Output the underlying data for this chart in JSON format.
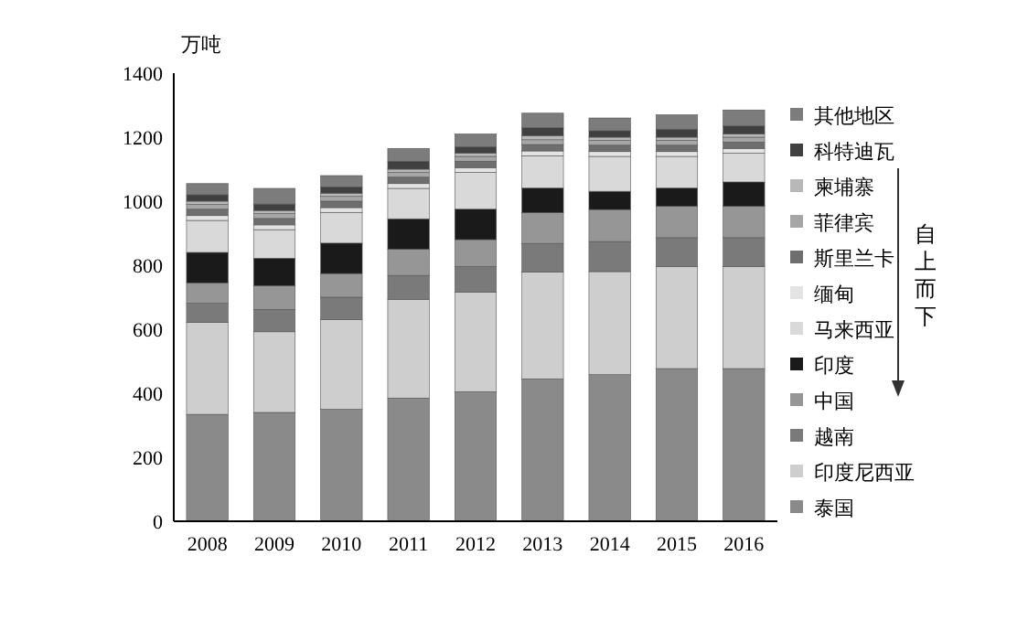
{
  "chart_data": {
    "type": "bar",
    "stacked": true,
    "ylabel": "万吨",
    "categories": [
      "2008",
      "2009",
      "2010",
      "2011",
      "2012",
      "2013",
      "2014",
      "2015",
      "2016"
    ],
    "ylim": [
      0,
      1400
    ],
    "yticks": [
      0,
      200,
      400,
      600,
      800,
      1000,
      1200,
      1400
    ],
    "grid": false,
    "legend": "right",
    "annotations": [
      "自上而下"
    ],
    "series": [
      {
        "name": "泰国",
        "color": "#8a8a8a",
        "values": [
          334,
          340,
          350,
          385,
          405,
          445,
          458,
          477,
          477
        ]
      },
      {
        "name": "印度尼西亚",
        "color": "#cecece",
        "values": [
          287,
          252,
          280,
          308,
          311,
          333,
          322,
          319,
          319
        ]
      },
      {
        "name": "越南",
        "color": "#7a7a7a",
        "values": [
          60,
          70,
          70,
          75,
          80,
          90,
          94,
          90,
          90
        ]
      },
      {
        "name": "中国",
        "color": "#969696",
        "values": [
          64,
          74,
          74,
          82,
          84,
          96,
          100,
          98,
          98
        ]
      },
      {
        "name": "印度",
        "color": "#1a1a1a",
        "values": [
          95,
          86,
          95,
          95,
          95,
          77,
          57,
          57,
          76
        ]
      },
      {
        "name": "马来西亚",
        "color": "#d9d9d9",
        "values": [
          100,
          89,
          96,
          95,
          115,
          101,
          109,
          99,
          90
        ]
      },
      {
        "name": "缅甸",
        "color": "#e3e3e3",
        "values": [
          15,
          15,
          15,
          15,
          15,
          15,
          15,
          15,
          15
        ]
      },
      {
        "name": "斯里兰卡",
        "color": "#6e6e6e",
        "values": [
          20,
          20,
          20,
          20,
          20,
          20,
          20,
          20,
          20
        ]
      },
      {
        "name": "菲律宾",
        "color": "#a6a6a6",
        "values": [
          15,
          15,
          15,
          15,
          15,
          15,
          15,
          15,
          15
        ]
      },
      {
        "name": "柬埔寨",
        "color": "#b8b8b8",
        "values": [
          10,
          10,
          10,
          10,
          10,
          13,
          10,
          10,
          10
        ]
      },
      {
        "name": "科特迪瓦",
        "color": "#404040",
        "values": [
          20,
          20,
          20,
          25,
          20,
          25,
          20,
          25,
          25
        ]
      },
      {
        "name": "其他地区",
        "color": "#7c7c7c",
        "values": [
          35,
          49,
          35,
          40,
          40,
          45,
          40,
          45,
          50
        ]
      }
    ]
  }
}
